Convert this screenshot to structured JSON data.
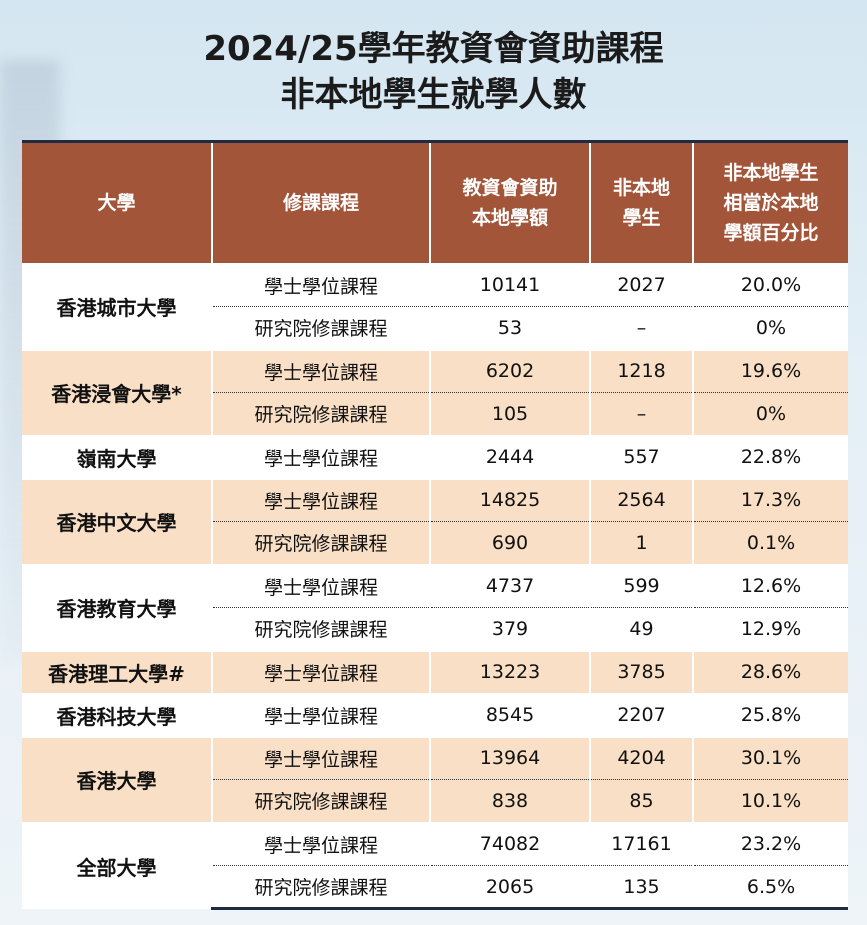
{
  "title": {
    "line1": "2024/25學年教資會資助課程",
    "line2": "非本地學生就學人數"
  },
  "table": {
    "headers": {
      "university": "大學",
      "programme": "修課課程",
      "places_1": "教資會資助",
      "places_2": "本地學額",
      "nonlocal_1": "非本地",
      "nonlocal_2": "學生",
      "pct_1": "非本地學生",
      "pct_2": "相當於本地",
      "pct_3": "學額百分比"
    },
    "rows": [
      {
        "university": "香港城市大學",
        "programme": "學士學位課程",
        "places": "10141",
        "nonlocal": "2027",
        "pct": "20.0%"
      },
      {
        "programme": "研究院修課課程",
        "places": "53",
        "nonlocal": "–",
        "pct": "0%"
      },
      {
        "university": "香港浸會大學*",
        "programme": "學士學位課程",
        "places": "6202",
        "nonlocal": "1218",
        "pct": "19.6%"
      },
      {
        "programme": "研究院修課課程",
        "places": "105",
        "nonlocal": "–",
        "pct": "0%"
      },
      {
        "university": "嶺南大學",
        "programme": "學士學位課程",
        "places": "2444",
        "nonlocal": "557",
        "pct": "22.8%"
      },
      {
        "university": "香港中文大學",
        "programme": "學士學位課程",
        "places": "14825",
        "nonlocal": "2564",
        "pct": "17.3%"
      },
      {
        "programme": "研究院修課課程",
        "places": "690",
        "nonlocal": "1",
        "pct": "0.1%"
      },
      {
        "university": "香港教育大學",
        "programme": "學士學位課程",
        "places": "4737",
        "nonlocal": "599",
        "pct": "12.6%"
      },
      {
        "programme": "研究院修課課程",
        "places": "379",
        "nonlocal": "49",
        "pct": "12.9%"
      },
      {
        "university": "香港理工大學#",
        "programme": "學士學位課程",
        "places": "13223",
        "nonlocal": "3785",
        "pct": "28.6%"
      },
      {
        "university": "香港科技大學",
        "programme": "學士學位課程",
        "places": "8545",
        "nonlocal": "2207",
        "pct": "25.8%"
      },
      {
        "university": "香港大學",
        "programme": "學士學位課程",
        "places": "13964",
        "nonlocal": "4204",
        "pct": "30.1%"
      },
      {
        "programme": "研究院修課課程",
        "places": "838",
        "nonlocal": "85",
        "pct": "10.1%"
      },
      {
        "university": "全部大學",
        "programme": "學士學位課程",
        "places": "74082",
        "nonlocal": "17161",
        "pct": "23.2%"
      },
      {
        "programme": "研究院修課課程",
        "places": "2065",
        "nonlocal": "135",
        "pct": "6.5%"
      }
    ]
  },
  "colors": {
    "header_bg": "#a3553a",
    "peach_band": "#f8dfc5",
    "rule": "#1e2c43"
  }
}
